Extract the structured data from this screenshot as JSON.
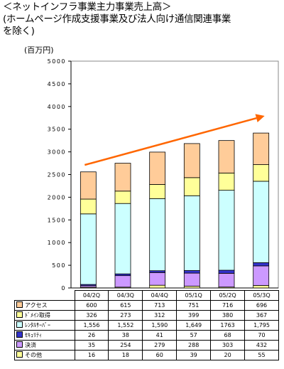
{
  "title_lines": [
    "＜ネットインフラ事業主力事業売上高＞",
    "(ホームページ作成支援事業及び法人向け通信関連事業",
    "を除く)"
  ],
  "unit_label": "(百万円)",
  "chart_data": {
    "type": "bar",
    "stacked": true,
    "categories": [
      "04/2Q",
      "04/3Q",
      "04/4Q",
      "05/1Q",
      "05/2Q",
      "05/3Q"
    ],
    "ylim": [
      0,
      5000
    ],
    "yticks": [
      "0",
      "500",
      "1000",
      "1500",
      "2000",
      "2500",
      "3000",
      "3500",
      "4000",
      "4500",
      "5000"
    ],
    "grid": false,
    "legend": "data-table",
    "trend_arrow": true,
    "series": [
      {
        "name": "その他",
        "color": "#ffff99",
        "values": [
          16,
          18,
          60,
          39,
          20,
          55
        ],
        "labels": [
          "16",
          "18",
          "60",
          "39",
          "20",
          "55"
        ]
      },
      {
        "name": "決済",
        "color": "#cc99ff",
        "values": [
          35,
          254,
          279,
          288,
          303,
          432
        ],
        "labels": [
          "35",
          "254",
          "279",
          "288",
          "303",
          "432"
        ]
      },
      {
        "name": "ｾｷｭﾘﾃｨ",
        "color": "#3333cc",
        "values": [
          26,
          38,
          41,
          57,
          68,
          70
        ],
        "labels": [
          "26",
          "38",
          "41",
          "57",
          "68",
          "70"
        ]
      },
      {
        "name": "ﾚﾝﾀﾙｻｰﾊﾞｰ",
        "color": "#ccffff",
        "values": [
          1556,
          1552,
          1590,
          1649,
          1763,
          1795
        ],
        "labels": [
          "1,556",
          "1,552",
          "1,590",
          "1,649",
          "1763",
          "1,795"
        ]
      },
      {
        "name": "ﾄﾞﾒｲﾝ取得",
        "color": "#ffff99",
        "values": [
          326,
          273,
          312,
          399,
          380,
          367
        ],
        "labels": [
          "326",
          "273",
          "312",
          "399",
          "380",
          "367"
        ]
      },
      {
        "name": "アクセス",
        "color": "#ffcc99",
        "values": [
          600,
          615,
          713,
          751,
          716,
          696
        ],
        "labels": [
          "600",
          "615",
          "713",
          "751",
          "716",
          "696"
        ]
      }
    ],
    "table_order": [
      "アクセス",
      "ﾄﾞﾒｲﾝ取得",
      "ﾚﾝﾀﾙｻｰﾊﾞｰ",
      "ｾｷｭﾘﾃｨ",
      "決済",
      "その他"
    ],
    "colors": {
      "arrow": "#ff6600",
      "axis": "#000000"
    }
  }
}
